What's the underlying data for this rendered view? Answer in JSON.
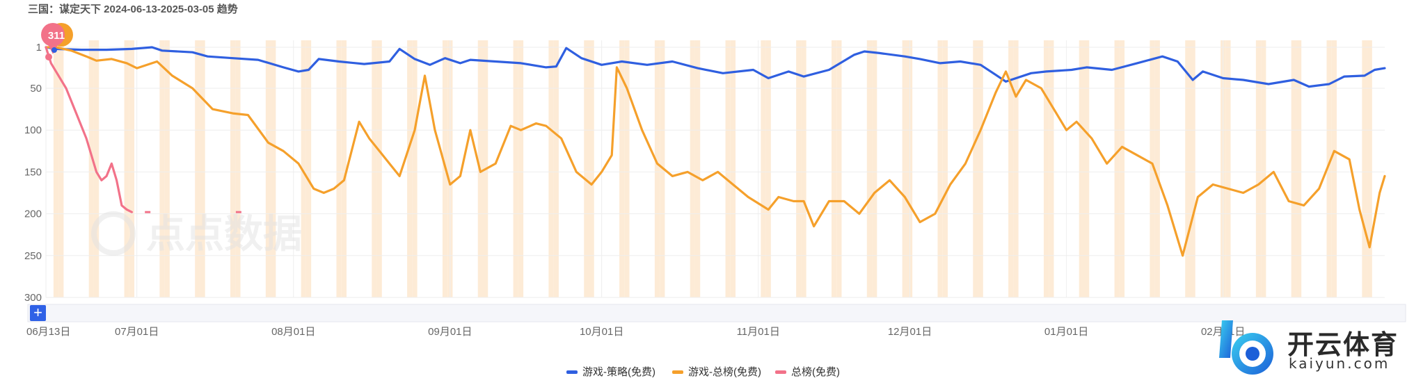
{
  "title": "三国：谋定天下 2024-06-13-2025-03-05 趋势",
  "marker_label": "311",
  "watermark": "点点数据",
  "brand": {
    "name": "开云体育",
    "domain": "kaiyun.com"
  },
  "plus_label": "+",
  "colors": {
    "strategy": "#2f5fe0",
    "overall": "#f5a02b",
    "total": "#f27289",
    "weekend_band": "#fdebd6",
    "grid": "#eeeeee",
    "marker_pink": "#f27289",
    "marker_orange": "#f5a02b"
  },
  "chart_data": {
    "type": "line",
    "title": "三国：谋定天下 2024-06-13-2025-03-05 趋势",
    "x_type": "date",
    "x_range": [
      "2024-06-13",
      "2025-03-05"
    ],
    "x_tick_labels": [
      "06月13日",
      "07月01日",
      "08月01日",
      "09月01日",
      "10月01日",
      "11月01日",
      "12月01日",
      "01月01日",
      "02月01日"
    ],
    "x_tick_dates": [
      "2024-06-13",
      "2024-07-01",
      "2024-08-01",
      "2024-09-01",
      "2024-10-01",
      "2024-11-01",
      "2024-12-01",
      "2025-01-01",
      "2025-02-01"
    ],
    "y_axis": {
      "reversed": true,
      "range": [
        1,
        300
      ],
      "ticks": [
        1,
        50,
        100,
        150,
        200,
        250,
        300
      ]
    },
    "grid": true,
    "legend_position": "bottom",
    "series": [
      {
        "name": "游戏-策略(免费)",
        "color": "#2f5fe0",
        "points": [
          [
            "2024-06-13",
            1
          ],
          [
            "2024-06-15",
            3
          ],
          [
            "2024-06-20",
            4
          ],
          [
            "2024-06-25",
            4
          ],
          [
            "2024-06-30",
            3
          ],
          [
            "2024-07-04",
            1
          ],
          [
            "2024-07-06",
            5
          ],
          [
            "2024-07-12",
            7
          ],
          [
            "2024-07-15",
            12
          ],
          [
            "2024-07-20",
            14
          ],
          [
            "2024-07-25",
            16
          ],
          [
            "2024-07-30",
            25
          ],
          [
            "2024-08-02",
            30
          ],
          [
            "2024-08-04",
            28
          ],
          [
            "2024-08-06",
            15
          ],
          [
            "2024-08-10",
            18
          ],
          [
            "2024-08-15",
            21
          ],
          [
            "2024-08-20",
            18
          ],
          [
            "2024-08-22",
            3
          ],
          [
            "2024-08-25",
            15
          ],
          [
            "2024-08-28",
            22
          ],
          [
            "2024-08-31",
            14
          ],
          [
            "2024-09-03",
            20
          ],
          [
            "2024-09-05",
            16
          ],
          [
            "2024-09-10",
            18
          ],
          [
            "2024-09-15",
            20
          ],
          [
            "2024-09-20",
            25
          ],
          [
            "2024-09-22",
            24
          ],
          [
            "2024-09-24",
            2
          ],
          [
            "2024-09-27",
            14
          ],
          [
            "2024-10-01",
            22
          ],
          [
            "2024-10-05",
            18
          ],
          [
            "2024-10-10",
            22
          ],
          [
            "2024-10-15",
            18
          ],
          [
            "2024-10-20",
            26
          ],
          [
            "2024-10-25",
            32
          ],
          [
            "2024-10-31",
            28
          ],
          [
            "2024-11-03",
            38
          ],
          [
            "2024-11-07",
            30
          ],
          [
            "2024-11-10",
            36
          ],
          [
            "2024-11-15",
            28
          ],
          [
            "2024-11-20",
            10
          ],
          [
            "2024-11-22",
            6
          ],
          [
            "2024-11-25",
            8
          ],
          [
            "2024-11-30",
            12
          ],
          [
            "2024-12-03",
            15
          ],
          [
            "2024-12-07",
            20
          ],
          [
            "2024-12-11",
            18
          ],
          [
            "2024-12-15",
            22
          ],
          [
            "2024-12-18",
            34
          ],
          [
            "2024-12-20",
            42
          ],
          [
            "2024-12-25",
            32
          ],
          [
            "2024-12-28",
            30
          ],
          [
            "2025-01-02",
            28
          ],
          [
            "2025-01-05",
            25
          ],
          [
            "2025-01-10",
            28
          ],
          [
            "2025-01-15",
            20
          ],
          [
            "2025-01-20",
            12
          ],
          [
            "2025-01-23",
            18
          ],
          [
            "2025-01-26",
            40
          ],
          [
            "2025-01-28",
            30
          ],
          [
            "2025-02-01",
            38
          ],
          [
            "2025-02-05",
            40
          ],
          [
            "2025-02-10",
            45
          ],
          [
            "2025-02-15",
            40
          ],
          [
            "2025-02-18",
            48
          ],
          [
            "2025-02-22",
            45
          ],
          [
            "2025-02-25",
            36
          ],
          [
            "2025-03-01",
            35
          ],
          [
            "2025-03-03",
            28
          ],
          [
            "2025-03-05",
            26
          ]
        ]
      },
      {
        "name": "游戏-总榜(免费)",
        "color": "#f5a02b",
        "points": [
          [
            "2024-06-13",
            1
          ],
          [
            "2024-06-15",
            0
          ],
          [
            "2024-06-18",
            5
          ],
          [
            "2024-06-21",
            12
          ],
          [
            "2024-06-23",
            17
          ],
          [
            "2024-06-26",
            15
          ],
          [
            "2024-06-29",
            20
          ],
          [
            "2024-07-01",
            26
          ],
          [
            "2024-07-05",
            18
          ],
          [
            "2024-07-08",
            35
          ],
          [
            "2024-07-12",
            50
          ],
          [
            "2024-07-16",
            75
          ],
          [
            "2024-07-20",
            80
          ],
          [
            "2024-07-23",
            82
          ],
          [
            "2024-07-27",
            115
          ],
          [
            "2024-07-30",
            125
          ],
          [
            "2024-08-02",
            140
          ],
          [
            "2024-08-05",
            170
          ],
          [
            "2024-08-07",
            175
          ],
          [
            "2024-08-09",
            170
          ],
          [
            "2024-08-11",
            160
          ],
          [
            "2024-08-14",
            90
          ],
          [
            "2024-08-16",
            110
          ],
          [
            "2024-08-18",
            125
          ],
          [
            "2024-08-20",
            140
          ],
          [
            "2024-08-22",
            155
          ],
          [
            "2024-08-25",
            100
          ],
          [
            "2024-08-27",
            35
          ],
          [
            "2024-08-29",
            100
          ],
          [
            "2024-09-01",
            165
          ],
          [
            "2024-09-03",
            155
          ],
          [
            "2024-09-05",
            100
          ],
          [
            "2024-09-07",
            150
          ],
          [
            "2024-09-10",
            140
          ],
          [
            "2024-09-13",
            95
          ],
          [
            "2024-09-15",
            100
          ],
          [
            "2024-09-18",
            92
          ],
          [
            "2024-09-20",
            95
          ],
          [
            "2024-09-23",
            110
          ],
          [
            "2024-09-26",
            150
          ],
          [
            "2024-09-29",
            165
          ],
          [
            "2024-10-01",
            150
          ],
          [
            "2024-10-03",
            130
          ],
          [
            "2024-10-04",
            25
          ],
          [
            "2024-10-06",
            50
          ],
          [
            "2024-10-09",
            100
          ],
          [
            "2024-10-12",
            140
          ],
          [
            "2024-10-15",
            155
          ],
          [
            "2024-10-18",
            150
          ],
          [
            "2024-10-21",
            160
          ],
          [
            "2024-10-24",
            150
          ],
          [
            "2024-10-27",
            165
          ],
          [
            "2024-10-30",
            180
          ],
          [
            "2024-11-03",
            195
          ],
          [
            "2024-11-05",
            180
          ],
          [
            "2024-11-08",
            185
          ],
          [
            "2024-11-10",
            185
          ],
          [
            "2024-11-12",
            215
          ],
          [
            "2024-11-15",
            185
          ],
          [
            "2024-11-18",
            185
          ],
          [
            "2024-11-21",
            200
          ],
          [
            "2024-11-24",
            175
          ],
          [
            "2024-11-27",
            160
          ],
          [
            "2024-11-30",
            180
          ],
          [
            "2024-12-03",
            210
          ],
          [
            "2024-12-06",
            200
          ],
          [
            "2024-12-09",
            165
          ],
          [
            "2024-12-12",
            140
          ],
          [
            "2024-12-15",
            100
          ],
          [
            "2024-12-18",
            55
          ],
          [
            "2024-12-20",
            30
          ],
          [
            "2024-12-22",
            60
          ],
          [
            "2024-12-24",
            40
          ],
          [
            "2024-12-27",
            50
          ],
          [
            "2024-12-30",
            80
          ],
          [
            "2025-01-01",
            100
          ],
          [
            "2025-01-03",
            90
          ],
          [
            "2025-01-06",
            110
          ],
          [
            "2025-01-09",
            140
          ],
          [
            "2025-01-12",
            120
          ],
          [
            "2025-01-15",
            130
          ],
          [
            "2025-01-18",
            140
          ],
          [
            "2025-01-21",
            190
          ],
          [
            "2025-01-24",
            250
          ],
          [
            "2025-01-27",
            180
          ],
          [
            "2025-01-30",
            165
          ],
          [
            "2025-02-02",
            170
          ],
          [
            "2025-02-05",
            175
          ],
          [
            "2025-02-08",
            165
          ],
          [
            "2025-02-11",
            150
          ],
          [
            "2025-02-14",
            185
          ],
          [
            "2025-02-17",
            190
          ],
          [
            "2025-02-20",
            170
          ],
          [
            "2025-02-23",
            125
          ],
          [
            "2025-02-26",
            135
          ],
          [
            "2025-02-28",
            195
          ],
          [
            "2025-03-02",
            240
          ],
          [
            "2025-03-04",
            175
          ],
          [
            "2025-03-05",
            155
          ]
        ]
      },
      {
        "name": "总榜(免费)",
        "color": "#f27289",
        "points": [
          [
            "2024-06-13",
            1
          ],
          [
            "2024-06-14",
            20
          ],
          [
            "2024-06-15",
            30
          ],
          [
            "2024-06-17",
            50
          ],
          [
            "2024-06-19",
            80
          ],
          [
            "2024-06-21",
            110
          ],
          [
            "2024-06-23",
            150
          ],
          [
            "2024-06-24",
            160
          ],
          [
            "2024-06-25",
            155
          ],
          [
            "2024-06-26",
            140
          ],
          [
            "2024-06-27",
            160
          ],
          [
            "2024-06-28",
            190
          ],
          [
            "2024-06-29",
            195
          ],
          [
            "2024-06-30",
            198
          ]
        ]
      }
    ]
  }
}
